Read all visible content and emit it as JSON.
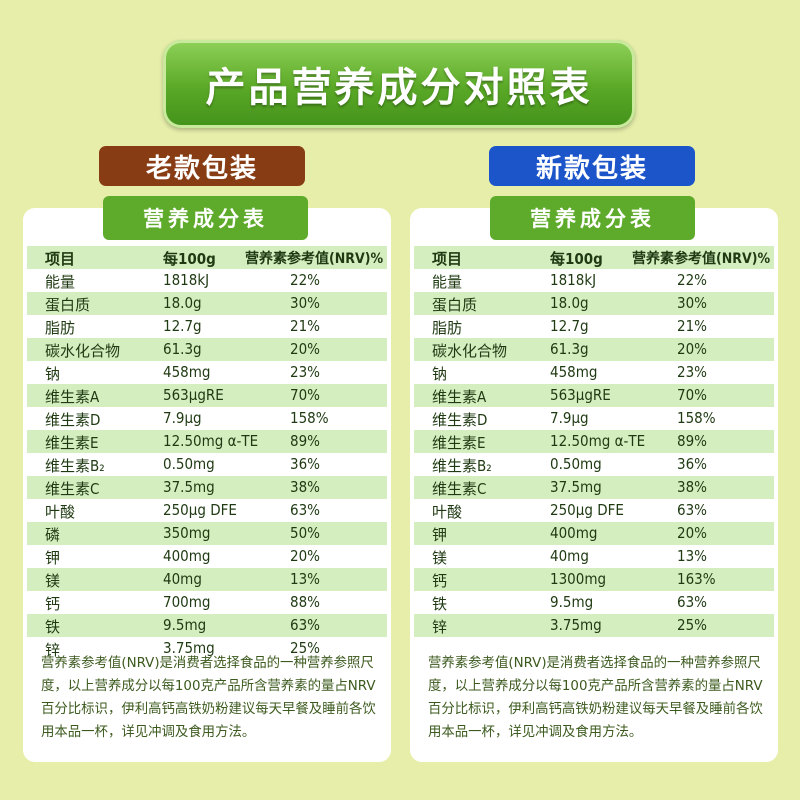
{
  "title": "产品营养成分对照表",
  "old": {
    "label": "老款包装",
    "table_title": "营养成分表",
    "header": {
      "item": "项目",
      "per100g": "每100g",
      "nrv": "营养素参考值(NRV)%"
    },
    "rows": [
      {
        "name": "能量",
        "value": "1818kJ",
        "nrv": "22%"
      },
      {
        "name": "蛋白质",
        "value": "18.0g",
        "nrv": "30%"
      },
      {
        "name": "脂肪",
        "value": "12.7g",
        "nrv": "21%"
      },
      {
        "name": "碳水化合物",
        "value": "61.3g",
        "nrv": "20%"
      },
      {
        "name": "钠",
        "value": "458mg",
        "nrv": "23%"
      },
      {
        "name": "维生素A",
        "value": "563μgRE",
        "nrv": "70%"
      },
      {
        "name": "维生素D",
        "value": "7.9μg",
        "nrv": "158%"
      },
      {
        "name": "维生素E",
        "value": "12.50mg α-TE",
        "nrv": "89%"
      },
      {
        "name": "维生素B₂",
        "value": "0.50mg",
        "nrv": "36%"
      },
      {
        "name": "维生素C",
        "value": "37.5mg",
        "nrv": "38%"
      },
      {
        "name": "叶酸",
        "value": "250μg DFE",
        "nrv": "63%"
      },
      {
        "name": "磷",
        "value": "350mg",
        "nrv": "50%"
      },
      {
        "name": "钾",
        "value": "400mg",
        "nrv": "20%"
      },
      {
        "name": "镁",
        "value": "40mg",
        "nrv": "13%"
      },
      {
        "name": "钙",
        "value": "700mg",
        "nrv": "88%"
      },
      {
        "name": "铁",
        "value": "9.5mg",
        "nrv": "63%"
      },
      {
        "name": "锌",
        "value": "3.75mg",
        "nrv": "25%"
      }
    ],
    "footnote": "营养素参考值(NRV)是消费者选择食品的一种营养参照尺度，以上营养成分以每100克产品所含营养素的量占NRV百分比标识，伊利高钙高铁奶粉建议每天早餐及睡前各饮用本品一杯，详见冲调及食用方法。"
  },
  "new": {
    "label": "新款包装",
    "table_title": "营养成分表",
    "header": {
      "item": "项目",
      "per100g": "每100g",
      "nrv": "营养素参考值(NRV)%"
    },
    "rows": [
      {
        "name": "能量",
        "value": "1818kJ",
        "nrv": "22%"
      },
      {
        "name": "蛋白质",
        "value": "18.0g",
        "nrv": "30%"
      },
      {
        "name": "脂肪",
        "value": "12.7g",
        "nrv": "21%"
      },
      {
        "name": "碳水化合物",
        "value": "61.3g",
        "nrv": "20%"
      },
      {
        "name": "钠",
        "value": "458mg",
        "nrv": "23%"
      },
      {
        "name": "维生素A",
        "value": "563μgRE",
        "nrv": "70%"
      },
      {
        "name": "维生素D",
        "value": "7.9μg",
        "nrv": "158%"
      },
      {
        "name": "维生素E",
        "value": "12.50mg α-TE",
        "nrv": "89%"
      },
      {
        "name": "维生素B₂",
        "value": "0.50mg",
        "nrv": "36%"
      },
      {
        "name": "维生素C",
        "value": "37.5mg",
        "nrv": "38%"
      },
      {
        "name": "叶酸",
        "value": "250μg DFE",
        "nrv": "63%"
      },
      {
        "name": "钾",
        "value": "400mg",
        "nrv": "20%"
      },
      {
        "name": "镁",
        "value": "40mg",
        "nrv": "13%"
      },
      {
        "name": "钙",
        "value": "1300mg",
        "nrv": "163%"
      },
      {
        "name": "铁",
        "value": "9.5mg",
        "nrv": "63%"
      },
      {
        "name": "锌",
        "value": "3.75mg",
        "nrv": "25%"
      }
    ],
    "footnote": "营养素参考值(NRV)是消费者选择食品的一种营养参照尺度，以上营养成分以每100克产品所含营养素的量占NRV百分比标识，伊利高钙高铁奶粉建议每天早餐及睡前各饮用本品一杯，详见冲调及食用方法。"
  }
}
